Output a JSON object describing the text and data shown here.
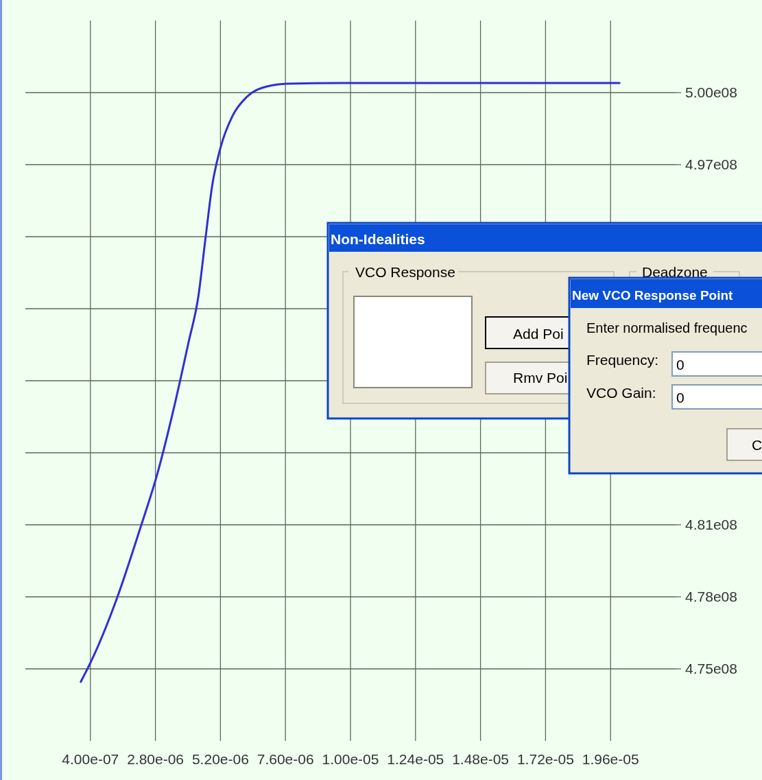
{
  "chart_data": {
    "type": "line",
    "x": [
      4.6e-08,
      4.76e-07,
      1.36e-06,
      2.24e-06,
      2.88e-06,
      3.51e-06,
      4.01e-06,
      4.39e-06,
      4.64e-06,
      4.9e-06,
      5.2e-06,
      5.65e-06,
      6.16e-06,
      6.92e-06,
      7.68e-06,
      9.7e-06,
      1.475e-05,
      1.993e-05
    ],
    "series": [
      {
        "color": "#3030d0",
        "values": [
          474440000,
          475450000,
          478000000,
          481100000,
          483500000,
          486460000,
          489100000,
          491200000,
          493600000,
          496000000,
          497600000,
          499000000,
          499800000,
          500270000,
          500390000,
          500420000,
          500420000,
          500420000
        ]
      }
    ],
    "xlim": [
      -2e-06,
      2.2e-05
    ],
    "xticks": [
      {
        "value": 4e-07,
        "label": "4.00e-07"
      },
      {
        "value": 2.8e-06,
        "label": "2.80e-06"
      },
      {
        "value": 5.2e-06,
        "label": "5.20e-06"
      },
      {
        "value": 7.6e-06,
        "label": "7.60e-06"
      },
      {
        "value": 1e-05,
        "label": "1.00e-05"
      },
      {
        "value": 1.24e-05,
        "label": "1.24e-05"
      },
      {
        "value": 1.48e-05,
        "label": "1.48e-05"
      },
      {
        "value": 1.72e-05,
        "label": "1.72e-05"
      },
      {
        "value": 1.96e-05,
        "label": "1.96e-05"
      }
    ],
    "ylim": [
      471875000,
      503125000
    ],
    "yticks": [
      {
        "value": 475000000,
        "label": "4.75e08"
      },
      {
        "value": 478125000,
        "label": "4.78e08"
      },
      {
        "value": 481250000,
        "label": "4.81e08"
      },
      {
        "value": 484375000,
        "label": null
      },
      {
        "value": 487500000,
        "label": null
      },
      {
        "value": 490625000,
        "label": null
      },
      {
        "value": 493750000,
        "label": null
      },
      {
        "value": 496875000,
        "label": "4.97e08"
      },
      {
        "value": 500000000,
        "label": "5.00e08"
      }
    ],
    "grid": true,
    "line_style": "solid",
    "annotations": [
      "Non-Idealities",
      "VCO Response",
      "Deadzone",
      "Add Poi",
      "Rmv Poi",
      "New VCO Response Point",
      "Enter normalised frequenc",
      "Frequency:",
      "VCO Gain:",
      "0",
      "0",
      "C"
    ]
  }
}
